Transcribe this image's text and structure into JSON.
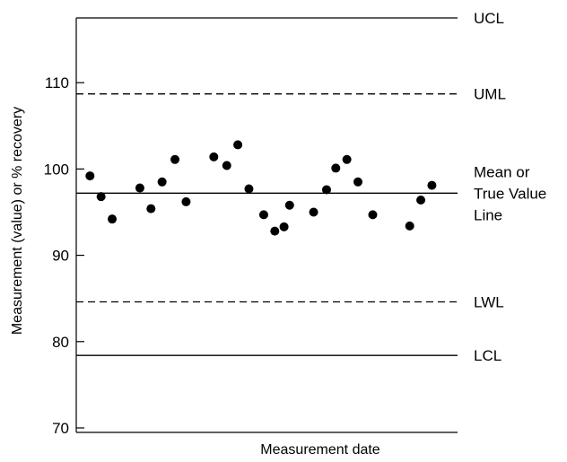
{
  "chart_data": {
    "type": "scatter",
    "title": "",
    "xlabel": "Measurement date",
    "ylabel": "Measurement (value) or % recovery",
    "ylim": [
      70,
      117.5
    ],
    "yticks": [
      70,
      80,
      90,
      100,
      110
    ],
    "xlim": [
      0,
      100
    ],
    "grid": false,
    "legend": "none",
    "x": [
      2.5,
      5.5,
      8.5,
      16,
      19,
      22,
      25.5,
      28.5,
      36,
      39.5,
      42.5,
      45.5,
      49.5,
      52.5,
      55,
      56.5,
      63,
      66.5,
      69,
      72,
      75,
      79,
      89,
      92,
      95
    ],
    "y": [
      99.2,
      96.8,
      94.2,
      97.8,
      95.4,
      98.5,
      101.1,
      96.2,
      101.4,
      100.4,
      102.8,
      97.7,
      94.7,
      92.8,
      93.3,
      95.8,
      95.0,
      97.6,
      100.1,
      101.1,
      98.5,
      94.7,
      93.4,
      96.4,
      98.1
    ],
    "reference_lines": [
      {
        "label": "UCL",
        "value": 117.5,
        "style": "solid"
      },
      {
        "label": "UML",
        "value": 108.7,
        "style": "dashed"
      },
      {
        "label": "Mean or\nTrue Value\nLine",
        "value": 97.2,
        "style": "solid"
      },
      {
        "label": "LWL",
        "value": 84.6,
        "style": "dashed"
      },
      {
        "label": "LCL",
        "value": 78.4,
        "style": "solid"
      }
    ]
  }
}
